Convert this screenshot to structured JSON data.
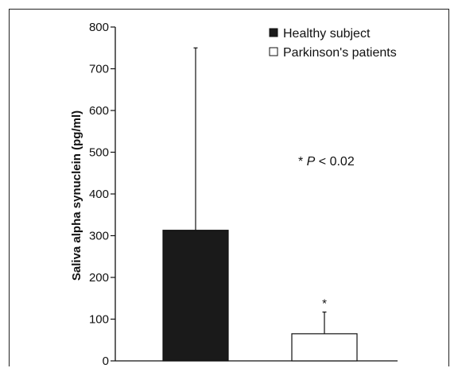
{
  "chart_data": {
    "type": "bar",
    "categories": [
      "Healthy subject",
      "Parkinson's patients"
    ],
    "values": [
      313,
      65
    ],
    "errors_upper": [
      437,
      52
    ],
    "ylabel": "Saliva alpha synuclein (pg/ml)",
    "xlabel": "",
    "ylim": [
      0,
      800
    ],
    "yticks": [
      0,
      100,
      200,
      300,
      400,
      500,
      600,
      700,
      800
    ],
    "yticklabels": [
      "0",
      "100",
      "200",
      "300",
      "400",
      "500",
      "600",
      "700",
      "800"
    ],
    "bar_colors": [
      "#1a1a1a",
      "#ffffff"
    ],
    "bar_star": "*",
    "annotation": {
      "star": "* ",
      "p": "P",
      "rest": " < 0.02"
    },
    "legend": {
      "placement": "top-right",
      "entries": [
        {
          "label": "Healthy subject",
          "color": "#1a1a1a"
        },
        {
          "label": "Parkinson's patients",
          "color": "#ffffff"
        }
      ]
    },
    "grid": false
  }
}
